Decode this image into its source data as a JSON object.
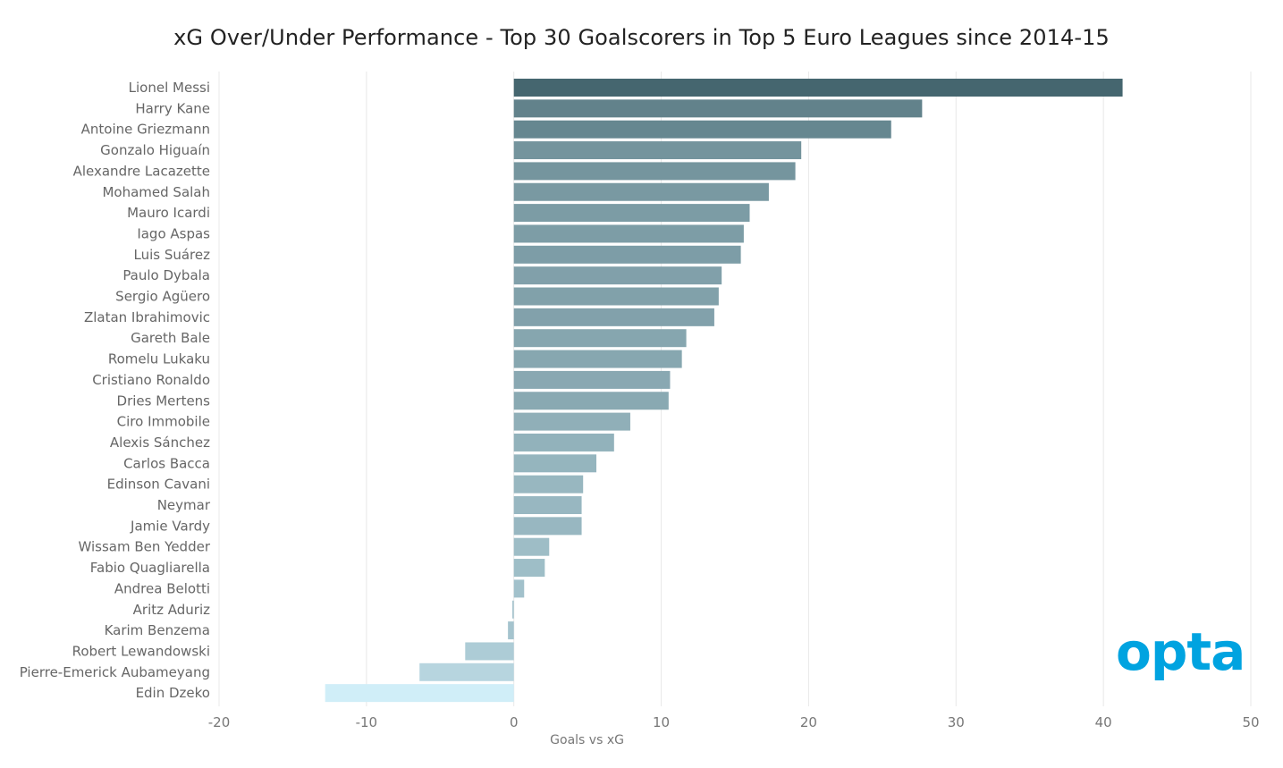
{
  "chart_data": {
    "type": "bar",
    "orientation": "horizontal",
    "title": "xG Over/Under Performance - Top 30 Goalscorers in Top 5 Euro Leagues since 2014-15",
    "xlabel": "Goals vs xG",
    "ylabel": "",
    "xlim": [
      -20,
      50
    ],
    "xticks": [
      -20,
      -10,
      0,
      10,
      20,
      30,
      40,
      50
    ],
    "grid": true,
    "categories": [
      "Lionel Messi",
      "Harry Kane",
      "Antoine Griezmann",
      "Gonzalo Higuaín",
      "Alexandre Lacazette",
      "Mohamed Salah",
      "Mauro Icardi",
      "Iago Aspas",
      "Luis Suárez",
      "Paulo Dybala",
      "Sergio Agüero",
      "Zlatan Ibrahimovic",
      "Gareth Bale",
      "Romelu Lukaku",
      "Cristiano Ronaldo",
      "Dries Mertens",
      "Ciro Immobile",
      "Alexis Sánchez",
      "Carlos Bacca",
      "Edinson Cavani",
      "Neymar",
      "Jamie Vardy",
      "Wissam Ben Yedder",
      "Fabio Quagliarella",
      "Andrea Belotti",
      "Aritz Aduriz",
      "Karim Benzema",
      "Robert Lewandowski",
      "Pierre-Emerick Aubameyang",
      "Edin Dzeko"
    ],
    "values": [
      41.3,
      27.7,
      25.6,
      19.5,
      19.1,
      17.3,
      16.0,
      15.6,
      15.4,
      14.1,
      13.9,
      13.6,
      11.7,
      11.4,
      10.6,
      10.5,
      7.9,
      6.8,
      5.6,
      4.7,
      4.6,
      4.6,
      2.4,
      2.1,
      0.7,
      -0.1,
      -0.4,
      -3.3,
      -6.4,
      -12.8
    ],
    "color_scale": {
      "high": "#45666f",
      "low": "#d0eef8"
    }
  },
  "logo": {
    "text": "opta",
    "color": "#00A3E0"
  }
}
